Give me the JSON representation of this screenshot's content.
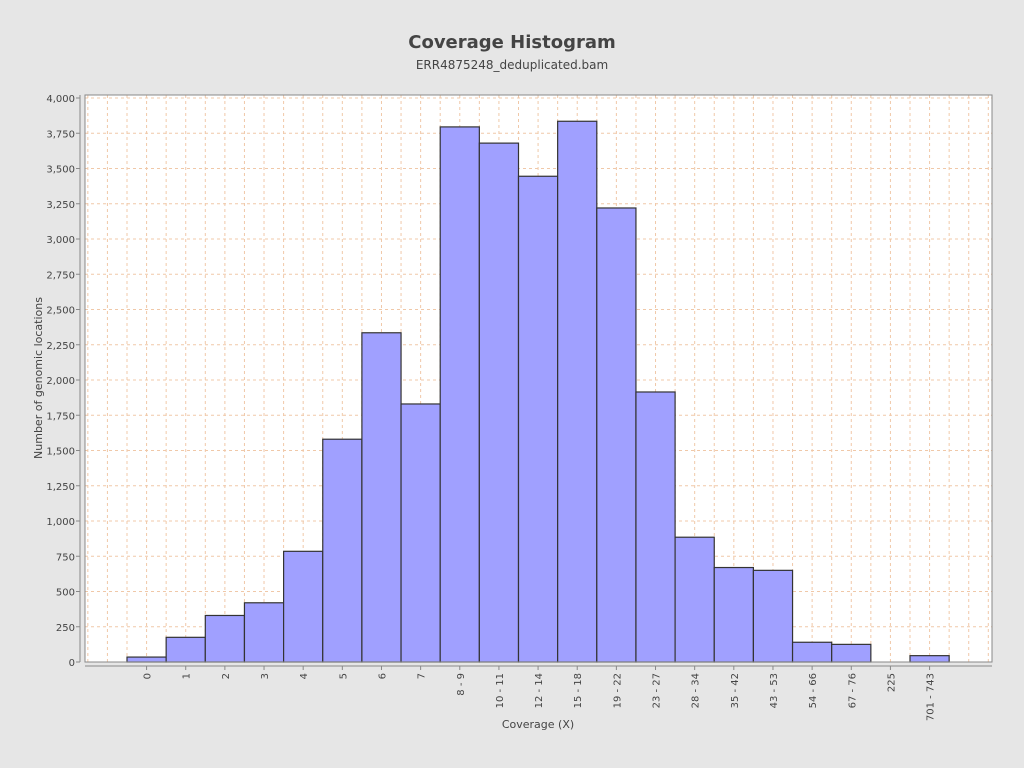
{
  "chart_data": {
    "type": "bar",
    "title": "Coverage Histogram",
    "subtitle": "ERR4875248_deduplicated.bam",
    "xlabel": "Coverage (X)",
    "ylabel": "Number of genomic locations",
    "categories": [
      "0",
      "1",
      "2",
      "3",
      "4",
      "5",
      "6",
      "7",
      "8 - 9",
      "10 - 11",
      "12 - 14",
      "15 - 18",
      "19 - 22",
      "23 - 27",
      "28 - 34",
      "35 - 42",
      "43 - 53",
      "54 - 66",
      "67 - 76",
      "225",
      "701 - 743"
    ],
    "values": [
      35,
      175,
      330,
      420,
      785,
      1580,
      2335,
      1830,
      3795,
      3680,
      3445,
      3835,
      3220,
      1915,
      885,
      670,
      650,
      140,
      125,
      0,
      45
    ],
    "ylim": [
      0,
      4000
    ],
    "yticks": [
      0,
      250,
      500,
      750,
      1000,
      1250,
      1500,
      1750,
      2000,
      2250,
      2500,
      2750,
      3000,
      3250,
      3500,
      3750,
      4000
    ],
    "ytick_labels": [
      "0",
      "250",
      "500",
      "750",
      "1,000",
      "1,250",
      "1,500",
      "1,750",
      "2,000",
      "2,250",
      "2,500",
      "2,750",
      "3,000",
      "3,250",
      "3,500",
      "3,750",
      "4,000"
    ],
    "grid": true,
    "bar_color": "#a0a0ff",
    "bar_edge_color": "#333333",
    "grid_color": "#f0c8a8",
    "plot_background": "#ffffff",
    "background": "#e6e6e6"
  }
}
